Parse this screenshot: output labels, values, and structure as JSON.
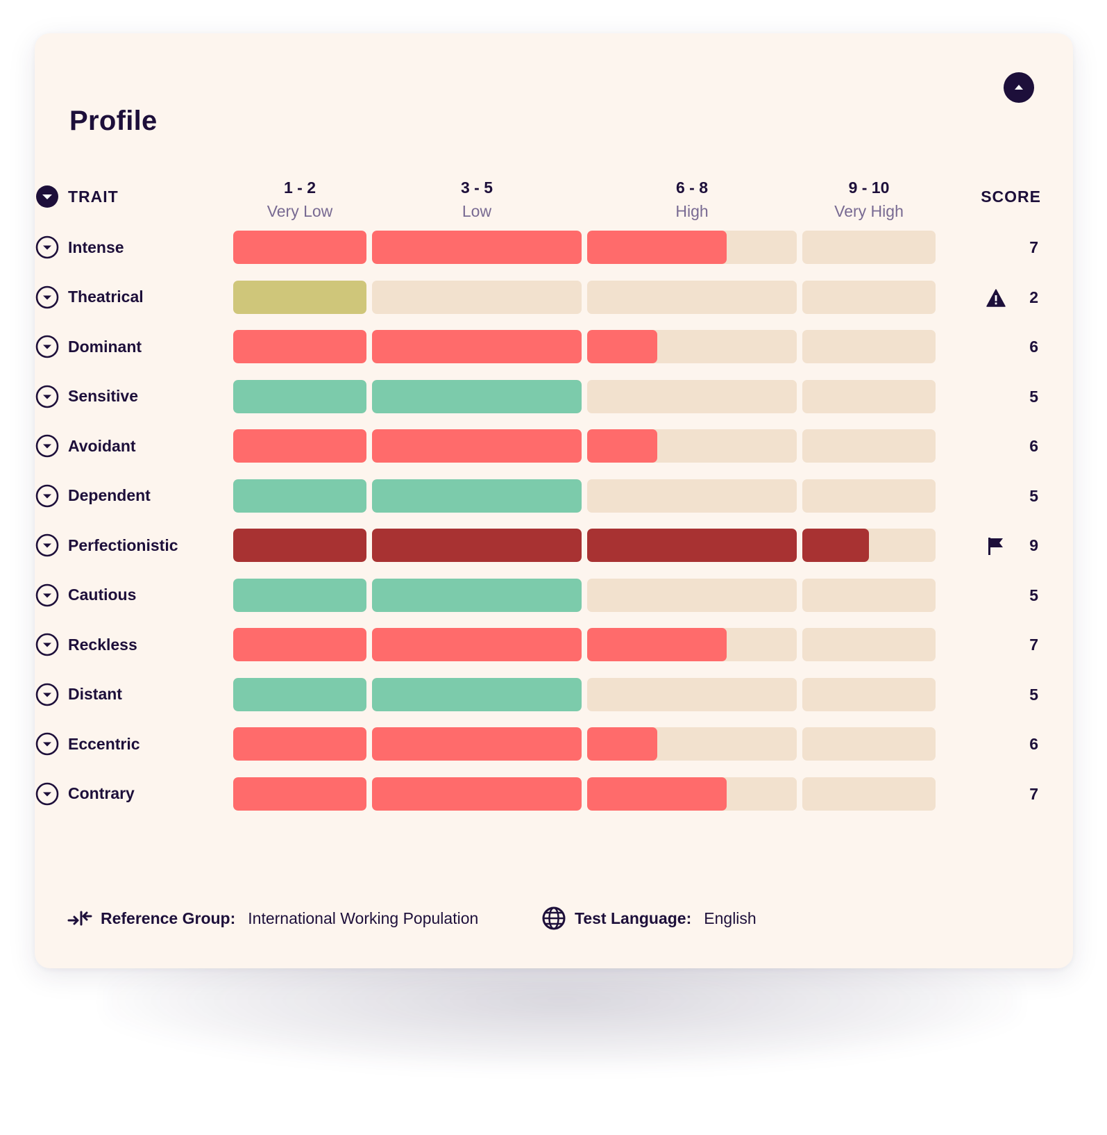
{
  "header": {
    "title": "Profile",
    "collapse_icon": "chevron-up-icon"
  },
  "table": {
    "trait_header": "TRAIT",
    "score_header": "SCORE",
    "ranges": [
      {
        "range": "1 - 2",
        "label": "Very Low"
      },
      {
        "range": "3 - 5",
        "label": "Low"
      },
      {
        "range": "6 - 8",
        "label": "High"
      },
      {
        "range": "9 - 10",
        "label": "Very High"
      }
    ],
    "rows": [
      {
        "trait": "Intense",
        "score": "7",
        "score_value": 7,
        "status": "high"
      },
      {
        "trait": "Theatrical",
        "score": "2",
        "score_value": 2,
        "status": "very-low",
        "marker": "warning-icon"
      },
      {
        "trait": "Dominant",
        "score": "6",
        "score_value": 6,
        "status": "high"
      },
      {
        "trait": "Sensitive",
        "score": "5",
        "score_value": 5,
        "status": "low"
      },
      {
        "trait": "Avoidant",
        "score": "6",
        "score_value": 6,
        "status": "high"
      },
      {
        "trait": "Dependent",
        "score": "5",
        "score_value": 5,
        "status": "low"
      },
      {
        "trait": "Perfectionistic",
        "score": "9",
        "score_value": 9,
        "status": "very-high",
        "marker": "flag-icon"
      },
      {
        "trait": "Cautious",
        "score": "5",
        "score_value": 5,
        "status": "low"
      },
      {
        "trait": "Reckless",
        "score": "7",
        "score_value": 7,
        "status": "high"
      },
      {
        "trait": "Distant",
        "score": "5",
        "score_value": 5,
        "status": "low"
      },
      {
        "trait": "Eccentric",
        "score": "6",
        "score_value": 6,
        "status": "high"
      },
      {
        "trait": "Contrary",
        "score": "7",
        "score_value": 7,
        "status": "high"
      }
    ]
  },
  "colors": {
    "text": "#1d0f3a",
    "muted": "#786a92",
    "card": "#fdf5ee",
    "track": "#f2e1ce",
    "very-low": "#cfc67a",
    "low": "#7ccbab",
    "high": "#ff6b6b",
    "very-high": "#a83232"
  },
  "footer": {
    "reference_icon": "arrows-compress-icon",
    "reference_label": "Reference Group:",
    "reference_value": "International Working Population",
    "language_icon": "globe-icon",
    "language_label": "Test Language:",
    "language_value": "English"
  }
}
